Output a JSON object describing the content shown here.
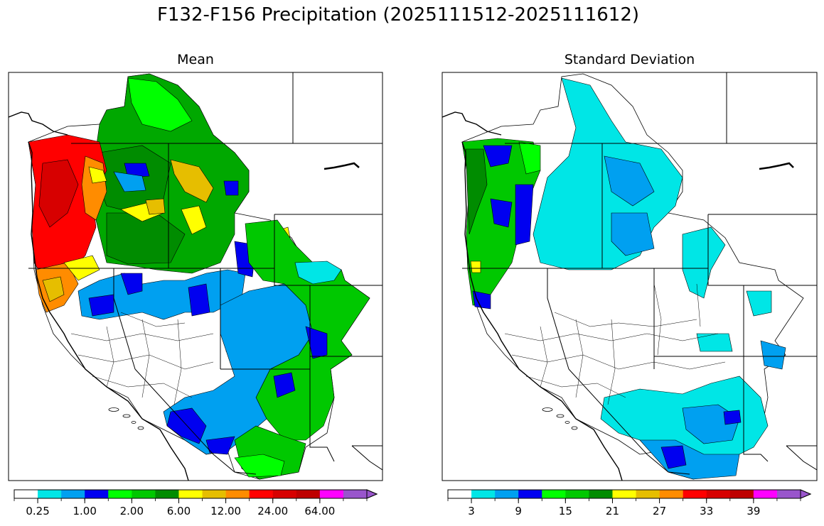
{
  "title": "F132-F156 Precipitation (2025111512-2025111612)",
  "panels": {
    "mean": {
      "title": "Mean"
    },
    "std": {
      "title": "Standard Deviation"
    }
  },
  "colorbar_colors": [
    "#ffffff",
    "#00e6e6",
    "#00a0f0",
    "#0000f0",
    "#00ff00",
    "#00c800",
    "#008c00",
    "#ffff00",
    "#e6be00",
    "#ff8c00",
    "#ff0000",
    "#d70000",
    "#be0000",
    "#ff00ff",
    "#9955cc"
  ],
  "mean_colorbar": {
    "ticks": [
      "0.25",
      "1.00",
      "2.00",
      "6.00",
      "12.00",
      "24.00",
      "64.00"
    ]
  },
  "std_colorbar": {
    "ticks": [
      "3",
      "9",
      "15",
      "21",
      "27",
      "33",
      "39"
    ]
  }
}
